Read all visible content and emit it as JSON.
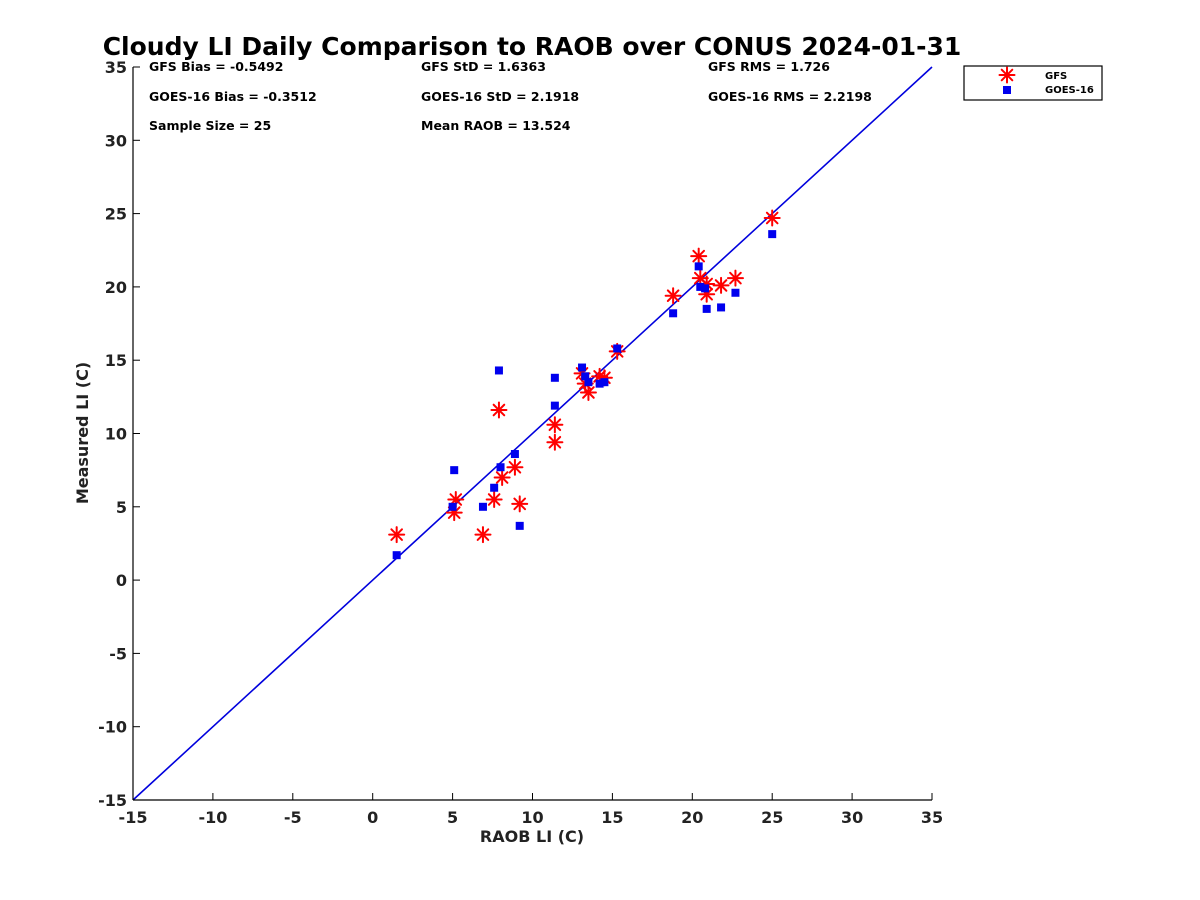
{
  "chart_data": {
    "type": "scatter",
    "title": "Cloudy LI Daily Comparison to RAOB over CONUS 2024-01-31",
    "xlabel": "RAOB LI (C)",
    "ylabel": "Measured LI (C)",
    "xlim": [
      -15,
      35
    ],
    "ylim": [
      -15,
      35
    ],
    "xticks": [
      "-15",
      "-10",
      "-5",
      "0",
      "5",
      "10",
      "15",
      "20",
      "25",
      "30",
      "35"
    ],
    "yticks": [
      "-15",
      "-10",
      "-5",
      "0",
      "5",
      "10",
      "15",
      "20",
      "25",
      "30",
      "35"
    ],
    "grid": false,
    "legend_position": "top-right, outside plot",
    "reference_line": {
      "from": [
        -15,
        -15
      ],
      "to": [
        35,
        35
      ],
      "color": "#0000dd"
    },
    "stats": [
      [
        "GFS Bias = -0.5492",
        "GFS StD = 1.6363",
        "GFS RMS = 1.726"
      ],
      [
        "GOES-16 Bias = -0.3512",
        "GOES-16 StD = 2.1918",
        "GOES-16 RMS = 2.2198"
      ],
      [
        "Sample Size = 25",
        "Mean RAOB = 13.524",
        ""
      ]
    ],
    "series": [
      {
        "name": "GFS",
        "marker": "asterisk",
        "color": "#ff0000",
        "points": [
          [
            1.5,
            3.1
          ],
          [
            5.1,
            4.6
          ],
          [
            5.2,
            5.5
          ],
          [
            6.9,
            3.1
          ],
          [
            7.6,
            5.5
          ],
          [
            7.9,
            11.6
          ],
          [
            8.1,
            7.0
          ],
          [
            8.9,
            7.7
          ],
          [
            9.2,
            5.2
          ],
          [
            11.4,
            10.6
          ],
          [
            11.4,
            9.4
          ],
          [
            13.1,
            14.1
          ],
          [
            13.3,
            13.4
          ],
          [
            13.5,
            12.8
          ],
          [
            14.2,
            13.9
          ],
          [
            14.5,
            13.8
          ],
          [
            15.3,
            15.6
          ],
          [
            18.8,
            19.4
          ],
          [
            20.4,
            22.1
          ],
          [
            20.5,
            20.6
          ],
          [
            20.9,
            20.2
          ],
          [
            20.9,
            19.5
          ],
          [
            21.8,
            20.1
          ],
          [
            22.7,
            20.6
          ],
          [
            25.0,
            24.7
          ]
        ]
      },
      {
        "name": "GOES-16",
        "marker": "square",
        "color": "#0000ee",
        "points": [
          [
            1.5,
            1.7
          ],
          [
            5.0,
            5.0
          ],
          [
            5.1,
            7.5
          ],
          [
            6.9,
            5.0
          ],
          [
            7.6,
            6.3
          ],
          [
            7.9,
            14.3
          ],
          [
            8.0,
            7.7
          ],
          [
            8.9,
            8.6
          ],
          [
            9.2,
            3.7
          ],
          [
            11.4,
            13.8
          ],
          [
            11.4,
            11.9
          ],
          [
            13.1,
            14.5
          ],
          [
            13.3,
            13.9
          ],
          [
            13.5,
            13.5
          ],
          [
            14.2,
            13.4
          ],
          [
            14.5,
            13.5
          ],
          [
            15.3,
            15.8
          ],
          [
            18.8,
            18.2
          ],
          [
            20.4,
            21.4
          ],
          [
            20.5,
            20.0
          ],
          [
            20.8,
            19.9
          ],
          [
            20.9,
            18.5
          ],
          [
            21.8,
            18.6
          ],
          [
            22.7,
            19.6
          ],
          [
            25.0,
            23.6
          ]
        ]
      }
    ]
  }
}
